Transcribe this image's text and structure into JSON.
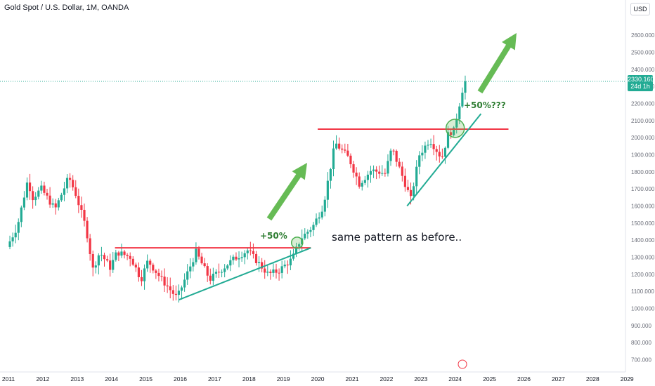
{
  "header": {
    "title": "Gold Spot / U.S. Dollar, 1M, OANDA",
    "currency": "USD"
  },
  "price_tag": {
    "price": "2330.160",
    "countdown": "24d 1h"
  },
  "colors": {
    "up": "#22ab94",
    "down": "#f23645",
    "resistance": "#f23645",
    "trend": "#22ab94",
    "arrow": "#66bb55"
  },
  "annotations": {
    "pct_1": "+50%",
    "pct_2": "+50%???",
    "note": "same pattern as before.."
  },
  "chart_data": {
    "type": "candlestick",
    "title": "Gold Spot / U.S. Dollar, 1M, OANDA",
    "ylabel": "USD",
    "ylim": [
      650,
      2800
    ],
    "xlim": [
      2011.0,
      2029.0
    ],
    "grid": false,
    "y_ticks": [
      "700.000",
      "800.000",
      "900.000",
      "1000.000",
      "1100.000",
      "1200.000",
      "1300.000",
      "1400.000",
      "1500.000",
      "1600.000",
      "1700.000",
      "1800.000",
      "1900.000",
      "2000.000",
      "2100.000",
      "2200.000",
      "2300.000",
      "2400.000",
      "2500.000",
      "2600.000"
    ],
    "x_ticks": [
      "2011",
      "2012",
      "2013",
      "2014",
      "2015",
      "2016",
      "2017",
      "2018",
      "2019",
      "2020",
      "2021",
      "2022",
      "2023",
      "2024",
      "2025",
      "2026",
      "2027",
      "2028",
      "2029"
    ],
    "key_points": [
      {
        "t": 2011.0,
        "v": 1360
      },
      {
        "t": 2011.3,
        "v": 1480
      },
      {
        "t": 2011.6,
        "v": 1750
      },
      {
        "t": 2011.75,
        "v": 1650
      },
      {
        "t": 2012.0,
        "v": 1700
      },
      {
        "t": 2012.4,
        "v": 1580
      },
      {
        "t": 2012.8,
        "v": 1770
      },
      {
        "t": 2013.0,
        "v": 1670
      },
      {
        "t": 2013.3,
        "v": 1470
      },
      {
        "t": 2013.5,
        "v": 1230
      },
      {
        "t": 2013.7,
        "v": 1330
      },
      {
        "t": 2014.0,
        "v": 1240
      },
      {
        "t": 2014.2,
        "v": 1330
      },
      {
        "t": 2014.6,
        "v": 1300
      },
      {
        "t": 2014.9,
        "v": 1170
      },
      {
        "t": 2015.1,
        "v": 1280
      },
      {
        "t": 2015.5,
        "v": 1170
      },
      {
        "t": 2015.95,
        "v": 1060
      },
      {
        "t": 2016.5,
        "v": 1330
      },
      {
        "t": 2016.9,
        "v": 1170
      },
      {
        "t": 2017.6,
        "v": 1290
      },
      {
        "t": 2018.0,
        "v": 1340
      },
      {
        "t": 2018.6,
        "v": 1200
      },
      {
        "t": 2018.9,
        "v": 1220
      },
      {
        "t": 2019.3,
        "v": 1290
      },
      {
        "t": 2019.55,
        "v": 1410
      },
      {
        "t": 2019.9,
        "v": 1480
      },
      {
        "t": 2020.2,
        "v": 1600
      },
      {
        "t": 2020.55,
        "v": 1970
      },
      {
        "t": 2020.95,
        "v": 1880
      },
      {
        "t": 2021.25,
        "v": 1730
      },
      {
        "t": 2021.6,
        "v": 1810
      },
      {
        "t": 2022.0,
        "v": 1790
      },
      {
        "t": 2022.2,
        "v": 1940
      },
      {
        "t": 2022.75,
        "v": 1640
      },
      {
        "t": 2023.0,
        "v": 1900
      },
      {
        "t": 2023.3,
        "v": 1990
      },
      {
        "t": 2023.65,
        "v": 1880
      },
      {
        "t": 2023.85,
        "v": 2030
      },
      {
        "t": 2024.0,
        "v": 2040
      },
      {
        "t": 2024.2,
        "v": 2230
      },
      {
        "t": 2024.3,
        "v": 2330
      }
    ],
    "resistance_lines": [
      {
        "t1": 2014.1,
        "t2": 2019.8,
        "v": 1355
      },
      {
        "t1": 2020.0,
        "t2": 2025.55,
        "v": 2050
      }
    ],
    "trend_lines": [
      {
        "t1": 2015.95,
        "v1": 1050,
        "t2": 2019.8,
        "v2": 1355
      },
      {
        "t1": 2022.6,
        "v1": 1600,
        "t2": 2024.75,
        "v2": 2140
      }
    ],
    "last_price": 2330.16
  }
}
